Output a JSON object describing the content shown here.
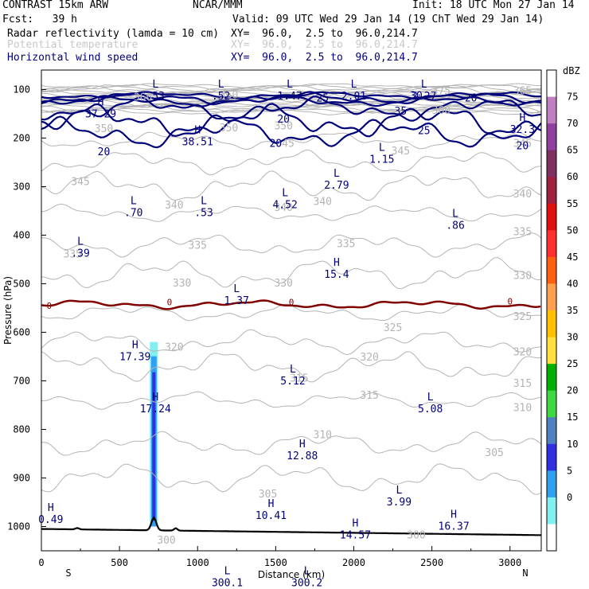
{
  "header": {
    "model": "CONTRAST 15km ARW",
    "center": "NCAR/MMM",
    "init": "Init: 18 UTC Mon 27 Jan 14",
    "fcst": "Fcst:   39 h",
    "valid": "Valid: 09 UTC Wed 29 Jan 14 (19 ChT Wed 29 Jan 14)",
    "fields": [
      {
        "name": "Radar reflectivity (lamda = 10 cm)",
        "xy": "XY=  96.0,  2.5 to  96.0,214.7",
        "color": "#000000"
      },
      {
        "name": "Potential temperature",
        "xy": "XY=  96.0,  2.5 to  96.0,214.7",
        "color": "#c8c8c8"
      },
      {
        "name": "Horizontal wind speed",
        "xy": "XY=  96.0,  2.5 to  96.0,214.7",
        "color": "#00007a"
      }
    ]
  },
  "chart_data": {
    "type": "contour-cross-section",
    "xlabel": "Distance (km)",
    "ylabel": "Pressure (hPa)",
    "xlim": [
      0,
      3200
    ],
    "ylim": [
      1050,
      60
    ],
    "xticks": [
      0,
      500,
      1000,
      1500,
      2000,
      2500,
      3000
    ],
    "yticks": [
      100,
      200,
      300,
      400,
      500,
      600,
      700,
      800,
      900,
      1000
    ],
    "end_labels": {
      "left": "S",
      "right": "N"
    },
    "colorbar": {
      "unit": "dBZ",
      "levels": [
        75,
        70,
        65,
        60,
        55,
        50,
        45,
        40,
        35,
        30,
        25,
        20,
        15,
        10,
        5,
        0
      ],
      "colors": [
        "#ffffff",
        "#c080c0",
        "#9040a0",
        "#803060",
        "#a02040",
        "#e01010",
        "#ff3030",
        "#ff6010",
        "#ffa050",
        "#ffc000",
        "#ffe040",
        "#00b000",
        "#40d840",
        "#5080c0",
        "#3030e0",
        "#30a0f0",
        "#80f0f0",
        "#ffffff"
      ]
    },
    "theta_labels": [
      {
        "x": 650,
        "p": 123,
        "v": "360"
      },
      {
        "x": 1200,
        "p": 118,
        "v": "360"
      },
      {
        "x": 1200,
        "p": 186,
        "v": "350"
      },
      {
        "x": 400,
        "p": 188,
        "v": "350"
      },
      {
        "x": 1550,
        "p": 182,
        "v": "350"
      },
      {
        "x": 2560,
        "p": 110,
        "v": "375"
      },
      {
        "x": 2560,
        "p": 150,
        "v": "360"
      },
      {
        "x": 3080,
        "p": 110,
        "v": "365"
      },
      {
        "x": 1560,
        "p": 218,
        "v": "345"
      },
      {
        "x": 2300,
        "p": 234,
        "v": "345"
      },
      {
        "x": 3080,
        "p": 218,
        "v": "345"
      },
      {
        "x": 250,
        "p": 297,
        "v": "345"
      },
      {
        "x": 850,
        "p": 345,
        "v": "340"
      },
      {
        "x": 1550,
        "p": 350,
        "v": "340"
      },
      {
        "x": 1800,
        "p": 338,
        "v": "340"
      },
      {
        "x": 3080,
        "p": 322,
        "v": "340"
      },
      {
        "x": 1000,
        "p": 428,
        "v": "335"
      },
      {
        "x": 1950,
        "p": 425,
        "v": "335"
      },
      {
        "x": 200,
        "p": 446,
        "v": "335"
      },
      {
        "x": 3080,
        "p": 400,
        "v": "335"
      },
      {
        "x": 900,
        "p": 506,
        "v": "330"
      },
      {
        "x": 1550,
        "p": 506,
        "v": "330"
      },
      {
        "x": 3080,
        "p": 490,
        "v": "330"
      },
      {
        "x": 2250,
        "p": 598,
        "v": "325"
      },
      {
        "x": 3080,
        "p": 575,
        "v": "325"
      },
      {
        "x": 850,
        "p": 638,
        "v": "320"
      },
      {
        "x": 2100,
        "p": 658,
        "v": "320"
      },
      {
        "x": 3080,
        "p": 648,
        "v": "320"
      },
      {
        "x": 1650,
        "p": 702,
        "v": "315"
      },
      {
        "x": 2100,
        "p": 737,
        "v": "315"
      },
      {
        "x": 3080,
        "p": 712,
        "v": "315"
      },
      {
        "x": 3080,
        "p": 762,
        "v": "310"
      },
      {
        "x": 1800,
        "p": 818,
        "v": "310"
      },
      {
        "x": 2900,
        "p": 855,
        "v": "305"
      },
      {
        "x": 1450,
        "p": 940,
        "v": "305"
      },
      {
        "x": 2400,
        "p": 1025,
        "v": "300"
      },
      {
        "x": 800,
        "p": 1035,
        "v": "300"
      }
    ],
    "theta_zero_labels": [
      {
        "x": 50,
        "p": 545
      },
      {
        "x": 820,
        "p": 538
      },
      {
        "x": 1600,
        "p": 538
      },
      {
        "x": 3000,
        "p": 536
      }
    ],
    "wind_labels": [
      {
        "x": 1800,
        "p": 125,
        "v": "25"
      },
      {
        "x": 2400,
        "p": 120,
        "v": "30"
      },
      {
        "x": 2750,
        "p": 125,
        "v": "20"
      },
      {
        "x": 2300,
        "p": 152,
        "v": "35"
      },
      {
        "x": 1550,
        "p": 168,
        "v": "20"
      },
      {
        "x": 2450,
        "p": 192,
        "v": "25"
      },
      {
        "x": 1500,
        "p": 218,
        "v": "20"
      },
      {
        "x": 400,
        "p": 235,
        "v": "20"
      },
      {
        "x": 3080,
        "p": 223,
        "v": "20"
      }
    ],
    "extrema": [
      {
        "x": 730,
        "p": 96,
        "t": "L",
        "v": ".53"
      },
      {
        "x": 1150,
        "p": 96,
        "t": "L",
        "v": ".52"
      },
      {
        "x": 1590,
        "p": 96,
        "t": "L",
        "v": "1.47"
      },
      {
        "x": 2000,
        "p": 96,
        "t": "L",
        "v": "2.01"
      },
      {
        "x": 2450,
        "p": 96,
        "t": "L",
        "v": "2.27"
      },
      {
        "x": 380,
        "p": 133,
        "t": "H",
        "v": "37.29"
      },
      {
        "x": 1000,
        "p": 190,
        "t": "H",
        "v": "38.51"
      },
      {
        "x": 3080,
        "p": 165,
        "t": "H",
        "v": "32.3"
      },
      {
        "x": 2180,
        "p": 226,
        "t": "L",
        "v": "1.15"
      },
      {
        "x": 1890,
        "p": 280,
        "t": "L",
        "v": "2.79"
      },
      {
        "x": 1560,
        "p": 320,
        "t": "L",
        "v": "4.52"
      },
      {
        "x": 590,
        "p": 336,
        "t": "L",
        "v": ".70"
      },
      {
        "x": 1040,
        "p": 336,
        "t": "L",
        "v": ".53"
      },
      {
        "x": 2650,
        "p": 362,
        "t": "L",
        "v": ".86"
      },
      {
        "x": 250,
        "p": 420,
        "t": "L",
        "v": ".39"
      },
      {
        "x": 1890,
        "p": 463,
        "t": "H",
        "v": "15.4"
      },
      {
        "x": 1250,
        "p": 517,
        "t": "L",
        "v": "1.37"
      },
      {
        "x": 600,
        "p": 633,
        "t": "H",
        "v": "17.39"
      },
      {
        "x": 1610,
        "p": 683,
        "t": "L",
        "v": "5.12"
      },
      {
        "x": 730,
        "p": 740,
        "t": "H",
        "v": "17.24"
      },
      {
        "x": 2490,
        "p": 740,
        "t": "L",
        "v": "5.08"
      },
      {
        "x": 1670,
        "p": 837,
        "t": "H",
        "v": "12.88"
      },
      {
        "x": 2290,
        "p": 932,
        "t": "L",
        "v": "3.99"
      },
      {
        "x": 1470,
        "p": 960,
        "t": "H",
        "v": "10.41"
      },
      {
        "x": 2640,
        "p": 982,
        "t": "H",
        "v": "16.37"
      },
      {
        "x": 2010,
        "p": 1000,
        "t": "H",
        "v": "14.57"
      },
      {
        "x": 60,
        "p": 968,
        "t": "H",
        "v": "0.49"
      },
      {
        "x": 1190,
        "p": 1098,
        "t": "L",
        "v": "300.1"
      },
      {
        "x": 1700,
        "p": 1098,
        "t": "L",
        "v": "300.2"
      }
    ],
    "reflectivity_column": {
      "x": 720,
      "p_top": 620,
      "p_bottom": 1000
    }
  }
}
